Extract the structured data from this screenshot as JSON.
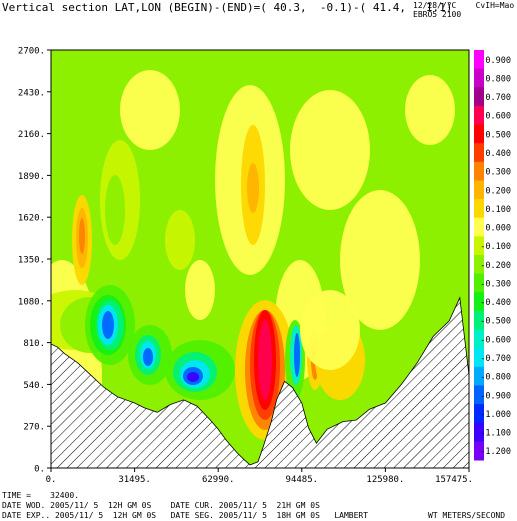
{
  "header": {
    "title": "Vertical section LAT,LON (BEGIN)-(END)=( 40.3,  -0.1)-( 41.4,   1.1)",
    "right_line1": "12/28//?C    CvIH=Mao",
    "right_line2": "EBRO5 2100"
  },
  "footer": {
    "time": "TIME =    32400.",
    "line2": "DATE WOD. 2005/11/ 5  12H GM 0S    DATE CUR. 2005/11/ 5  21H GM 0S",
    "line3": "DATE EXP.. 2005/11/ 5  12H GM 0S   DATE SEG. 2005/11/ 5  18H GM 0S   LAMBERT",
    "units": "WT METERS/SECOND"
  },
  "chart_data": {
    "type": "heatmap",
    "title": "Vertical section LAT,LON (BEGIN)-(END)=( 40.3,  -0.1)-( 41.4,   1.1)",
    "units": "WT METERS/SECOND",
    "xlim": [
      0,
      157475
    ],
    "ylim": [
      0,
      2700
    ],
    "x_ticks": [
      "0.",
      "31495.",
      "62990.",
      "94485.",
      "125980.",
      "157475."
    ],
    "y_ticks": [
      "0.",
      "270.",
      "540.",
      "810.",
      "1080.",
      "1350.",
      "1620.",
      "1890.",
      "2160.",
      "2430.",
      "2700."
    ],
    "levels": [
      {
        "label": "0.900",
        "color": "#ff00ff"
      },
      {
        "label": "0.800",
        "color": "#c800c8"
      },
      {
        "label": "0.700",
        "color": "#a0008c"
      },
      {
        "label": "0.600",
        "color": "#ff0050"
      },
      {
        "label": "0.500",
        "color": "#ff0000"
      },
      {
        "label": "0.400",
        "color": "#ff3c00"
      },
      {
        "label": "0.300",
        "color": "#ff8200"
      },
      {
        "label": "0.200",
        "color": "#ffb400"
      },
      {
        "label": "0.100",
        "color": "#ffd700"
      },
      {
        "label": "0.000",
        "color": "#ffff50"
      },
      {
        "label": "-0.100",
        "color": "#c8f500"
      },
      {
        "label": "-0.200",
        "color": "#8cf000"
      },
      {
        "label": "-0.300",
        "color": "#50f000"
      },
      {
        "label": "-0.400",
        "color": "#14f014"
      },
      {
        "label": "-0.500",
        "color": "#00f078"
      },
      {
        "label": "-0.600",
        "color": "#00f0c8"
      },
      {
        "label": "-0.700",
        "color": "#00e6f5"
      },
      {
        "label": "-0.800",
        "color": "#00aaff"
      },
      {
        "label": "-0.900",
        "color": "#0064ff"
      },
      {
        "label": "-1.000",
        "color": "#0028ff"
      },
      {
        "label": "-1.100",
        "color": "#3c00ff"
      },
      {
        "label": "-1.200",
        "color": "#7800f5"
      }
    ],
    "terrain": {
      "x": [
        0,
        2500,
        5000,
        10000,
        15000,
        20000,
        25000,
        31495,
        35000,
        40000,
        45000,
        50000,
        55000,
        60000,
        62990,
        66000,
        70000,
        73000,
        75000,
        78000,
        80000,
        83000,
        85000,
        88000,
        91000,
        94485,
        97000,
        100000,
        104000,
        110000,
        115000,
        120000,
        125980,
        132000,
        138000,
        144000,
        150000,
        154000,
        157475
      ],
      "y": [
        800,
        780,
        740,
        680,
        600,
        520,
        460,
        420,
        390,
        360,
        410,
        440,
        400,
        310,
        250,
        180,
        100,
        50,
        20,
        40,
        140,
        300,
        440,
        560,
        520,
        420,
        260,
        160,
        250,
        300,
        310,
        380,
        420,
        540,
        680,
        850,
        950,
        1100,
        600
      ]
    },
    "features": [
      {
        "kind": "max",
        "x": 13500,
        "y": 1500,
        "value": 0.4
      },
      {
        "kind": "max",
        "x": 80000,
        "y": 1800,
        "value": 0.4
      },
      {
        "kind": "min",
        "x": 23500,
        "y": 920,
        "value": -1.1
      },
      {
        "kind": "min",
        "x": 37000,
        "y": 730,
        "value": -1.0
      },
      {
        "kind": "min",
        "x": 55000,
        "y": 620,
        "value": -1.2
      },
      {
        "kind": "max",
        "x": 82000,
        "y": 620,
        "value": 0.6
      },
      {
        "kind": "min",
        "x": 90500,
        "y": 700,
        "value": -1.1
      },
      {
        "kind": "max",
        "x": 99000,
        "y": 720,
        "value": 0.3
      }
    ]
  }
}
